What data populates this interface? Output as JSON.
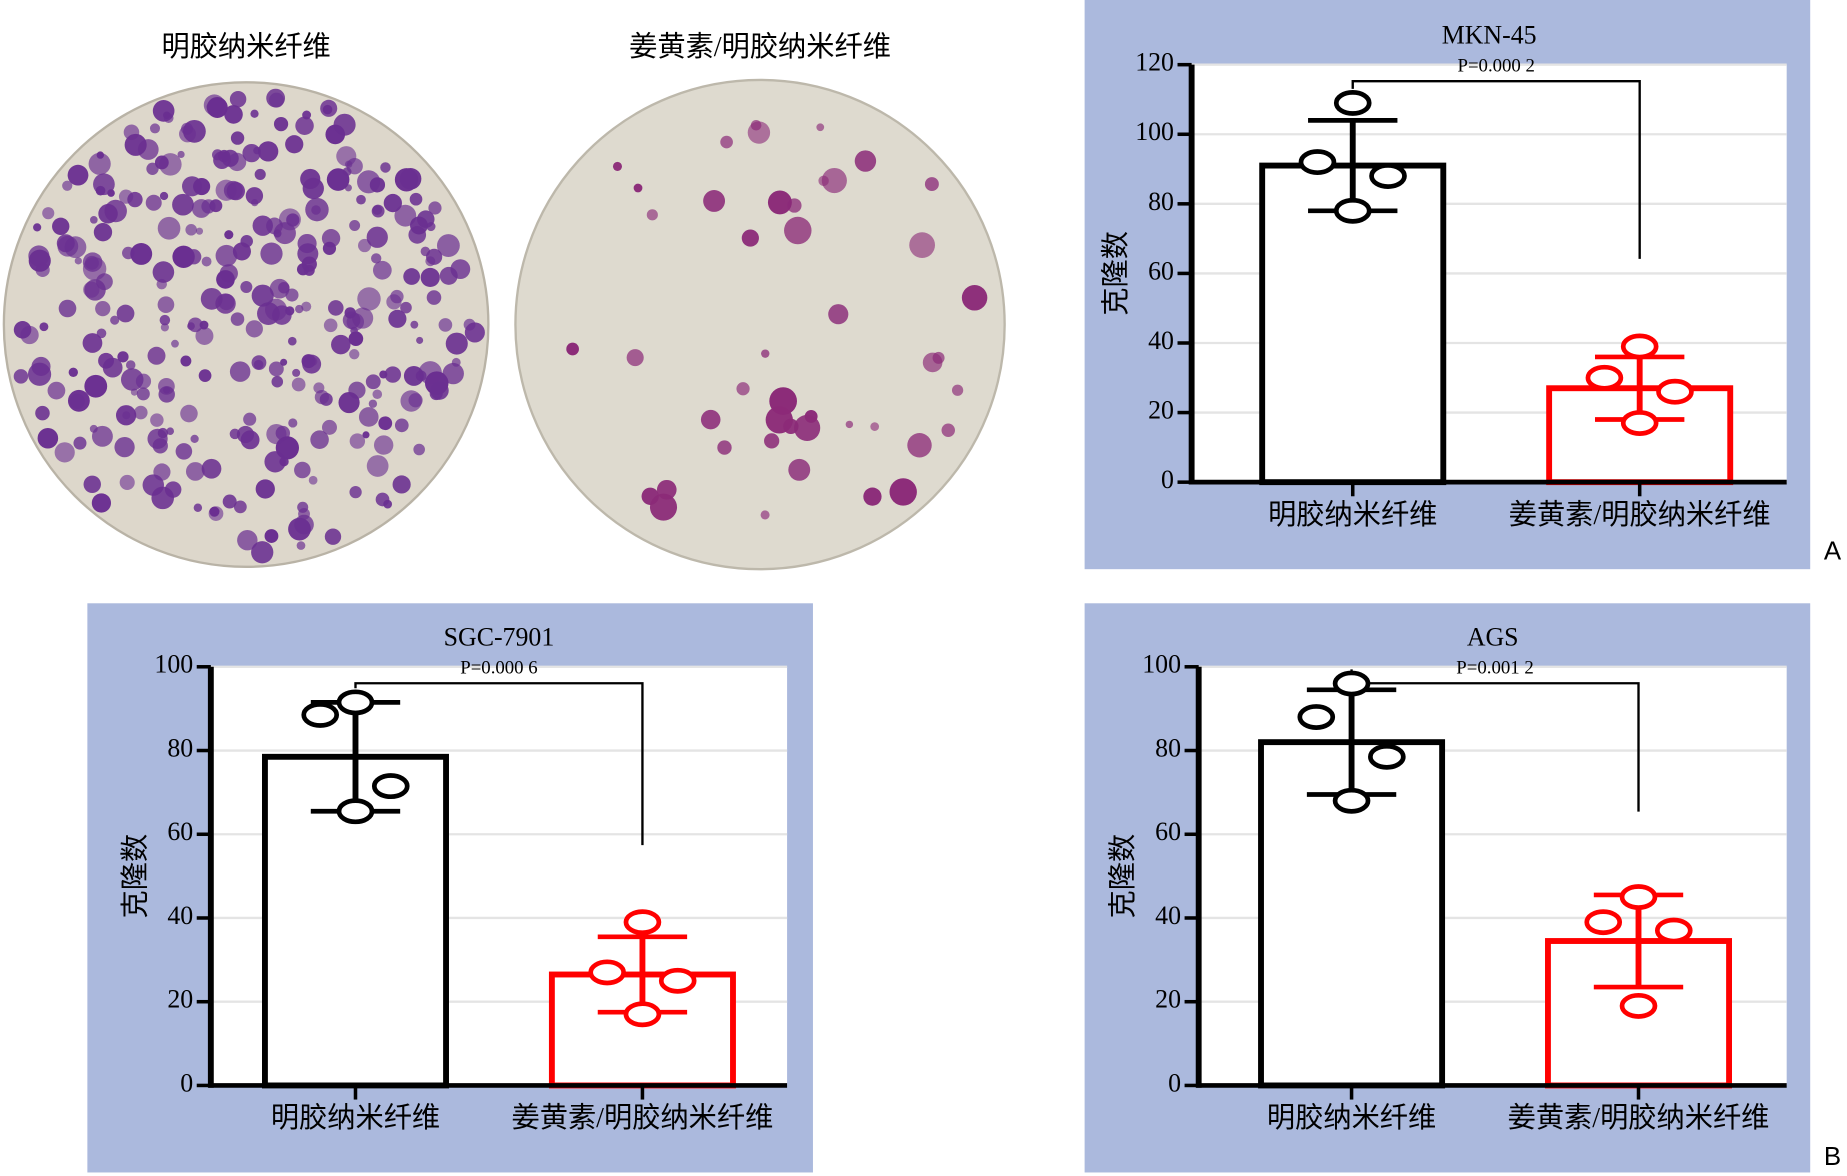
{
  "images": [
    {
      "label": "明胶纳米纤维"
    },
    {
      "label": "姜黄素/明胶纳米纤维"
    }
  ],
  "panel_letters": [
    "A",
    "B"
  ],
  "chart_data": [
    {
      "type": "bar",
      "title": "MKN-45",
      "annotation": "P=0.000 2",
      "y_label": "克隆数",
      "categories": [
        "明胶纳米纤维",
        "姜黄素/明胶纳米纤维"
      ],
      "values": [
        91,
        27
      ],
      "errors": [
        13,
        9
      ],
      "colors": [
        "#000000",
        "#ff0000"
      ],
      "points": [
        [
          109,
          92,
          88,
          78
        ],
        [
          39,
          30,
          26,
          17
        ]
      ],
      "ylim": [
        0,
        120
      ],
      "yticks": [
        0,
        20,
        40,
        60,
        80,
        100,
        120
      ],
      "grid": true
    },
    {
      "type": "bar",
      "title": "SGC-7901",
      "annotation": "P=0.000 6",
      "y_label": "克隆数",
      "categories": [
        "明胶纳米纤维",
        "姜黄素/明胶纳米纤维"
      ],
      "values": [
        78.5,
        26.5
      ],
      "errors": [
        13,
        9
      ],
      "colors": [
        "#000000",
        "#ff0000"
      ],
      "points": [
        [
          91.5,
          88.5,
          71.5,
          65.5
        ],
        [
          39,
          27,
          25,
          17
        ]
      ],
      "ylim": [
        0,
        100
      ],
      "yticks": [
        0,
        20,
        40,
        60,
        80,
        100
      ],
      "grid": true
    },
    {
      "type": "bar",
      "title": "AGS",
      "annotation": "P=0.001 2",
      "y_label": "克隆数",
      "categories": [
        "明胶纳米纤维",
        "姜黄素/明胶纳米纤维"
      ],
      "values": [
        82,
        34.5
      ],
      "errors": [
        12.5,
        11
      ],
      "colors": [
        "#000000",
        "#ff0000"
      ],
      "points": [
        [
          96,
          88,
          78.5,
          68
        ],
        [
          45,
          39,
          37,
          19
        ]
      ],
      "ylim": [
        0,
        100
      ],
      "yticks": [
        0,
        20,
        40,
        60,
        80,
        100
      ],
      "grid": true
    }
  ]
}
